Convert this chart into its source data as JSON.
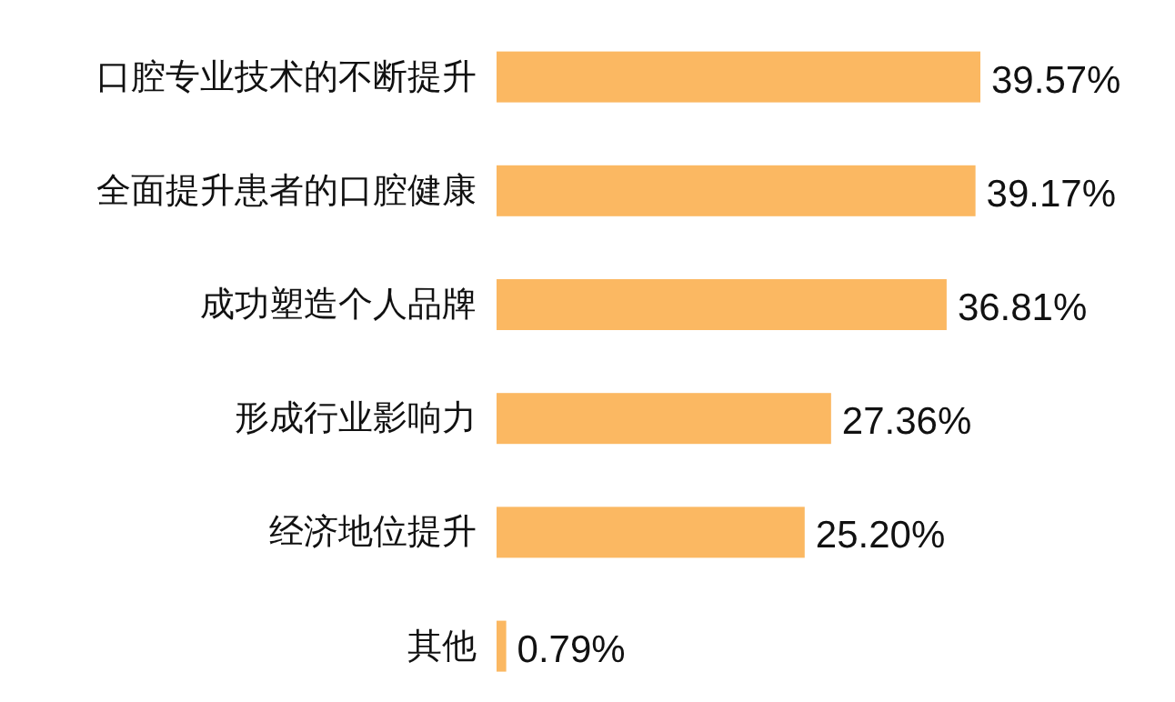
{
  "chart_data": {
    "type": "bar",
    "orientation": "horizontal",
    "categories": [
      "口腔专业技术的不断提升",
      "全面提升患者的口腔健康",
      "成功塑造个人品牌",
      "形成行业影响力",
      "经济地位提升",
      "其他"
    ],
    "values": [
      39.57,
      39.17,
      36.81,
      27.36,
      25.2,
      0.79
    ],
    "value_labels": [
      "39.57%",
      "39.17%",
      "36.81%",
      "27.36%",
      "25.20%",
      "0.79%"
    ],
    "color": "#fbb862"
  }
}
